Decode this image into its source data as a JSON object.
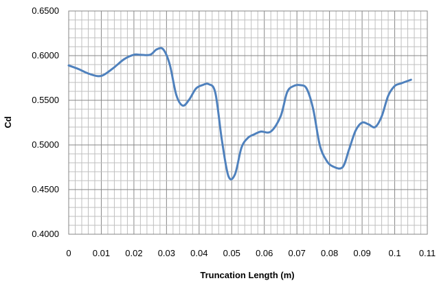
{
  "chart_data": {
    "type": "line",
    "title": "",
    "xlabel": "Truncation Length (m)",
    "ylabel": "Cd",
    "xlim": [
      0,
      0.11
    ],
    "ylim": [
      0.4,
      0.65
    ],
    "x_ticks": [
      "0",
      "0.01",
      "0.02",
      "0.03",
      "0.04",
      "0.05",
      "0.06",
      "0.07",
      "0.08",
      "0.09",
      "0.1",
      "0.11"
    ],
    "y_ticks": [
      "0.4000",
      "0.4500",
      "0.5000",
      "0.5500",
      "0.6000",
      "0.6500"
    ],
    "grid": true,
    "legend": "none",
    "series": [
      {
        "color": "#4f81bd",
        "x": [
          0,
          0.003,
          0.006,
          0.009,
          0.011,
          0.014,
          0.017,
          0.02,
          0.022,
          0.025,
          0.027,
          0.029,
          0.031,
          0.033,
          0.035,
          0.037,
          0.039,
          0.041,
          0.043,
          0.045,
          0.047,
          0.049,
          0.051,
          0.053,
          0.055,
          0.057,
          0.059,
          0.062,
          0.065,
          0.067,
          0.069,
          0.071,
          0.073,
          0.075,
          0.077,
          0.079,
          0.081,
          0.084,
          0.086,
          0.088,
          0.09,
          0.092,
          0.094,
          0.096,
          0.098,
          0.1,
          0.102,
          0.105
        ],
        "values": [
          0.589,
          0.585,
          0.58,
          0.577,
          0.579,
          0.587,
          0.596,
          0.601,
          0.601,
          0.601,
          0.607,
          0.607,
          0.59,
          0.556,
          0.544,
          0.551,
          0.563,
          0.567,
          0.568,
          0.558,
          0.505,
          0.465,
          0.467,
          0.497,
          0.508,
          0.512,
          0.515,
          0.515,
          0.532,
          0.559,
          0.566,
          0.567,
          0.563,
          0.54,
          0.5,
          0.483,
          0.476,
          0.475,
          0.495,
          0.516,
          0.525,
          0.523,
          0.52,
          0.532,
          0.555,
          0.566,
          0.569,
          0.573
        ]
      }
    ]
  }
}
